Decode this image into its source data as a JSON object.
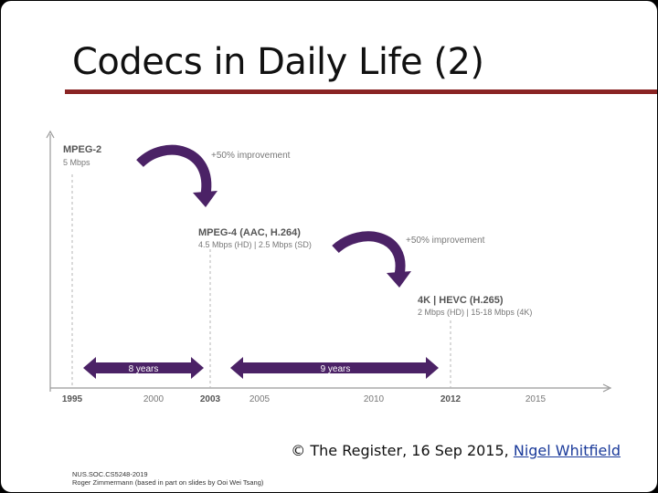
{
  "slide": {
    "title": "Codecs in Daily Life (2)",
    "credit_text": "© The Register, 16 Sep 2015, ",
    "credit_link": "Nigel Whitfield",
    "footer_line1": "NUS.SOC.CS5248-2019",
    "footer_line2": "Roger Zimmermann (based in part on slides by Ooi Wei Tsang)"
  },
  "figure": {
    "years": [
      "1995",
      "2000",
      "2003",
      "2005",
      "2010",
      "2012",
      "2015"
    ],
    "codecs": [
      {
        "name": "MPEG-2",
        "rate": "5 Mbps"
      },
      {
        "name": "MPEG-4 (AAC, H.264)",
        "rate": "4.5 Mbps (HD) | 2.5 Mbps (SD)"
      },
      {
        "name": "4K | HEVC (H.265)",
        "rate": "2 Mbps (HD) | 15-18 Mbps (4K)"
      }
    ],
    "improvements": [
      "+50% improvement",
      "+50% improvement"
    ],
    "spans": [
      "8 years",
      "9 years"
    ],
    "colors": {
      "accent": "#4b2266",
      "rule": "#8a2424",
      "text_gray": "#666666"
    }
  }
}
